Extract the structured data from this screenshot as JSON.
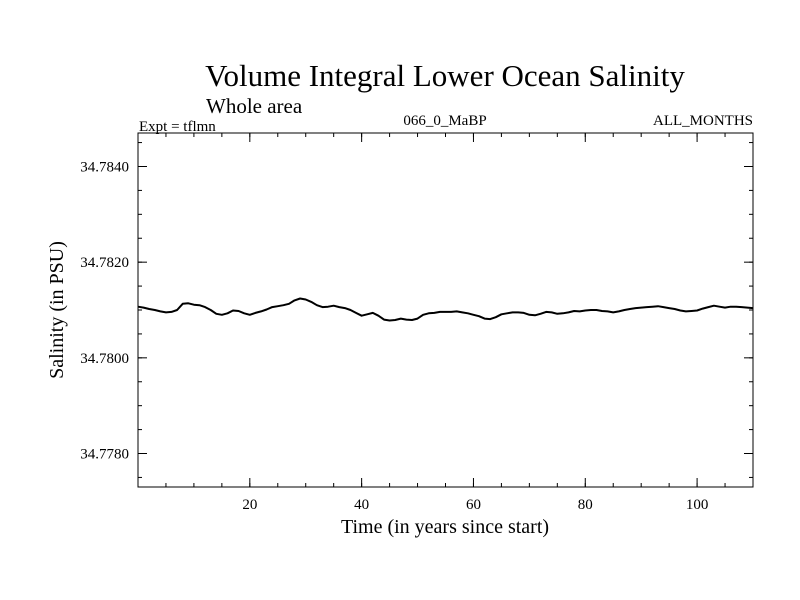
{
  "chart_data": {
    "type": "line",
    "title": "Volume Integral Lower Ocean Salinity",
    "subtitle": "Whole area",
    "annotations": {
      "left": "Expt = tflmn",
      "center": "066_0_MaBP",
      "right": "ALL_MONTHS"
    },
    "xlabel": "Time (in years since start)",
    "ylabel": "Salinity (in PSU)",
    "xlim": [
      0,
      110
    ],
    "ylim": [
      34.7773,
      34.7847
    ],
    "xticks_major": [
      20,
      40,
      60,
      80,
      100
    ],
    "xtick_labels": [
      "20",
      "40",
      "60",
      "80",
      "100"
    ],
    "xtick_minor_step": 5,
    "yticks_major": [
      34.778,
      34.78,
      34.782,
      34.784
    ],
    "ytick_labels": [
      "34.7780",
      "34.7800",
      "34.7820",
      "34.7840"
    ],
    "ytick_minor_step": 0.0005,
    "grid": false,
    "series": [
      {
        "name": "salinity",
        "color": "#000000",
        "x": [
          0,
          1,
          2,
          3,
          4,
          5,
          6,
          7,
          8,
          9,
          10,
          11,
          12,
          13,
          14,
          15,
          16,
          17,
          18,
          19,
          20,
          21,
          22,
          23,
          24,
          25,
          26,
          27,
          28,
          29,
          30,
          31,
          32,
          33,
          34,
          35,
          36,
          37,
          38,
          39,
          40,
          41,
          42,
          43,
          44,
          45,
          46,
          47,
          48,
          49,
          50,
          51,
          52,
          53,
          54,
          55,
          56,
          57,
          58,
          59,
          60,
          61,
          62,
          63,
          64,
          65,
          66,
          67,
          68,
          69,
          70,
          71,
          72,
          73,
          74,
          75,
          76,
          77,
          78,
          79,
          80,
          81,
          82,
          83,
          84,
          85,
          86,
          87,
          88,
          89,
          90,
          91,
          92,
          93,
          94,
          95,
          96,
          97,
          98,
          99,
          100,
          101,
          102,
          103,
          104,
          105,
          106,
          107,
          108,
          109,
          110
        ],
        "values": [
          34.78107,
          34.78105,
          34.78102,
          34.781,
          34.78097,
          34.78095,
          34.78096,
          34.781,
          34.78113,
          34.78114,
          34.78111,
          34.7811,
          34.78106,
          34.781,
          34.78092,
          34.7809,
          34.78093,
          34.78099,
          34.78098,
          34.78093,
          34.7809,
          34.78094,
          34.78097,
          34.78101,
          34.78106,
          34.78108,
          34.7811,
          34.78113,
          34.7812,
          34.78124,
          34.78122,
          34.78117,
          34.7811,
          34.78106,
          34.78107,
          34.78109,
          34.78106,
          34.78104,
          34.781,
          34.78094,
          34.78088,
          34.78091,
          34.78094,
          34.78088,
          34.7808,
          34.78078,
          34.78079,
          34.78082,
          34.7808,
          34.78079,
          34.78082,
          34.7809,
          34.78093,
          34.78094,
          34.78096,
          34.78096,
          34.78096,
          34.78097,
          34.78095,
          34.78093,
          34.7809,
          34.78087,
          34.78082,
          34.78081,
          34.78085,
          34.78091,
          34.78093,
          34.78095,
          34.78095,
          34.78094,
          34.7809,
          34.78089,
          34.78092,
          34.78096,
          34.78095,
          34.78092,
          34.78093,
          34.78095,
          34.78098,
          34.78097,
          34.78099,
          34.781,
          34.781,
          34.78098,
          34.78097,
          34.78095,
          34.78097,
          34.781,
          34.78102,
          34.78104,
          34.78105,
          34.78106,
          34.78107,
          34.78108,
          34.78106,
          34.78104,
          34.78102,
          34.78099,
          34.78097,
          34.78098,
          34.78099,
          34.78103,
          34.78106,
          34.78109,
          34.78107,
          34.78105,
          34.78107,
          34.78107,
          34.78106,
          34.78105,
          34.78104
        ]
      }
    ]
  }
}
